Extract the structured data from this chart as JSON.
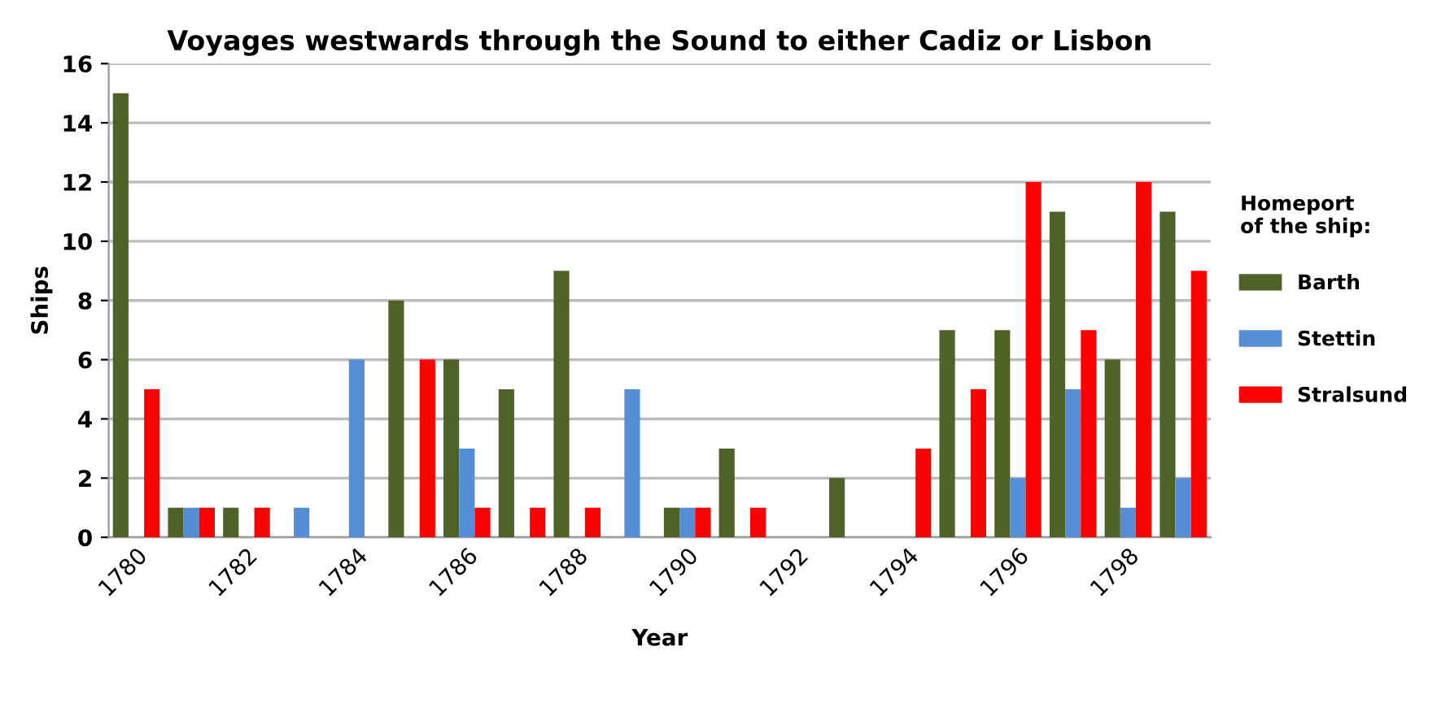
{
  "chart_data": {
    "type": "bar",
    "title": "Voyages westwards through the Sound to either Cadiz or Lisbon",
    "xlabel": "Year",
    "ylabel": "Ships",
    "legend_title": "Homeport\nof the ship:",
    "categories": [
      "1780",
      null,
      "1782",
      null,
      "1784",
      null,
      "1786",
      null,
      "1788",
      null,
      "1790",
      null,
      "1792",
      null,
      "1794",
      null,
      "1796",
      null,
      "1798",
      null
    ],
    "series": [
      {
        "name": "Barth",
        "color": "#4f6228",
        "values": [
          15,
          1,
          1,
          0,
          0,
          8,
          6,
          5,
          9,
          0,
          1,
          3,
          0,
          2,
          0,
          7,
          7,
          11,
          6,
          11
        ]
      },
      {
        "name": "Stettin",
        "color": "#558ed5",
        "values": [
          0,
          1,
          0,
          1,
          6,
          0,
          3,
          0,
          0,
          5,
          1,
          0,
          0,
          0,
          0,
          0,
          2,
          5,
          1,
          2
        ]
      },
      {
        "name": "Stralsund",
        "color": "#ff0000",
        "values": [
          5,
          1,
          1,
          0,
          0,
          6,
          1,
          1,
          1,
          0,
          1,
          1,
          0,
          0,
          3,
          5,
          12,
          7,
          12,
          9
        ]
      }
    ],
    "ylim": [
      0,
      16
    ],
    "yticks": [
      0,
      2,
      4,
      6,
      8,
      10,
      12,
      14,
      16
    ],
    "grid": "y",
    "legend": "right"
  }
}
